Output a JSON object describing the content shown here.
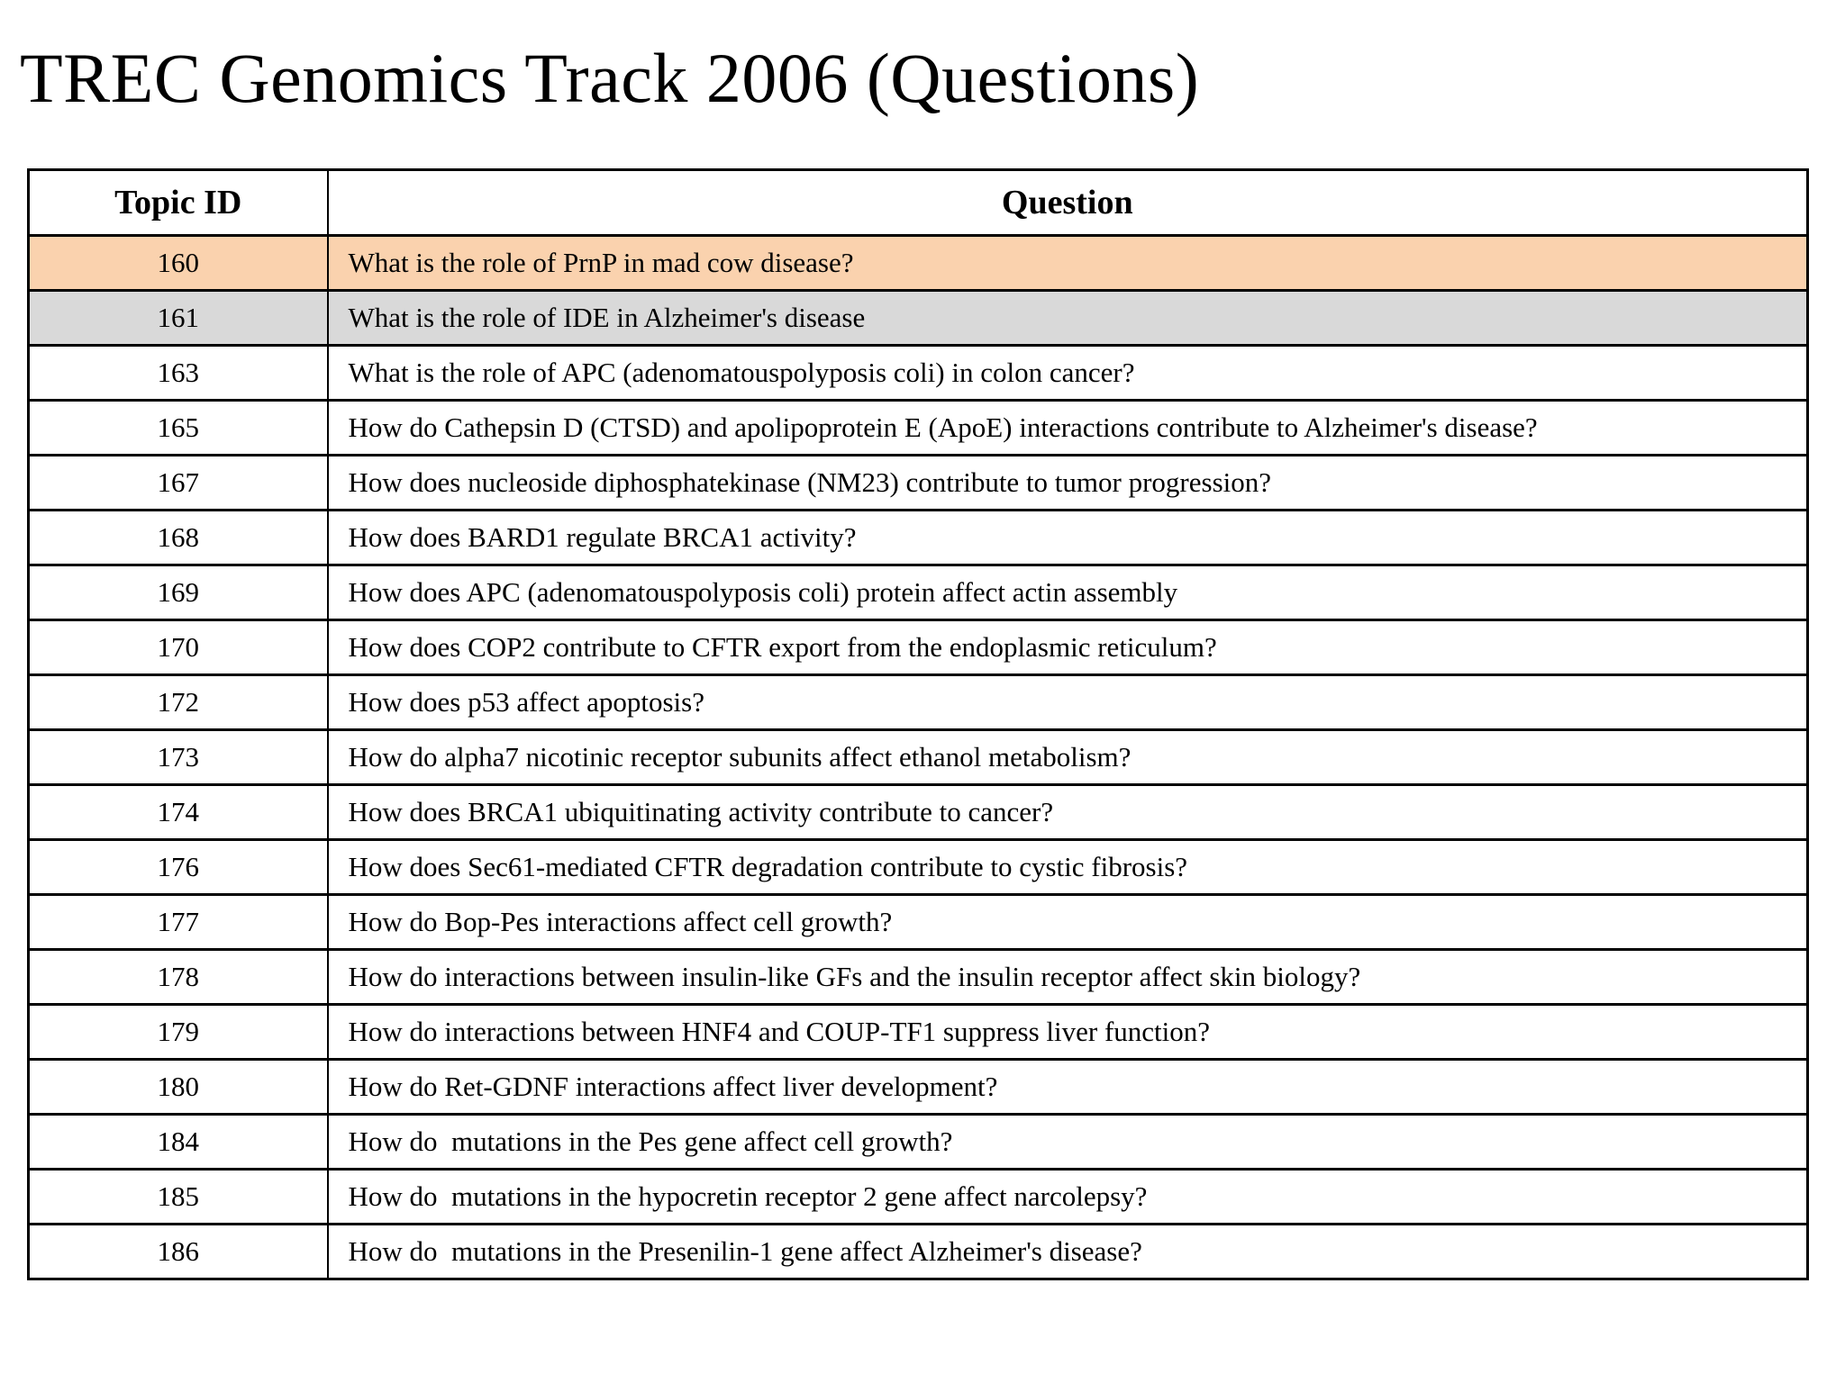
{
  "page": {
    "title": "TREC Genomics Track 2006 (Questions)",
    "background_color": "#ffffff",
    "text_color": "#000000"
  },
  "table": {
    "columns": [
      {
        "key": "topic_id",
        "label": "Topic ID"
      },
      {
        "key": "question",
        "label": "Question"
      }
    ],
    "border_color": "#000000",
    "highlight_colors": {
      "orange": "#FAD2AE",
      "gray": "#D9D9D9",
      "none": "#FFFFFF"
    },
    "rows": [
      {
        "topic_id": "160",
        "question": "What is the role of PrnP in mad cow disease?",
        "highlight": "orange"
      },
      {
        "topic_id": "161",
        "question": "What is the role of IDE in Alzheimer's disease",
        "highlight": "gray"
      },
      {
        "topic_id": "163",
        "question": "What is the role of APC (adenomatouspolyposis coli) in colon cancer?",
        "highlight": "none"
      },
      {
        "topic_id": "165",
        "question": "How do Cathepsin D (CTSD) and apolipoprotein E (ApoE) interactions contribute to Alzheimer's disease?",
        "highlight": "none"
      },
      {
        "topic_id": "167",
        "question": "How does nucleoside diphosphatekinase (NM23) contribute to tumor progression?",
        "highlight": "none"
      },
      {
        "topic_id": "168",
        "question": "How does BARD1 regulate BRCA1 activity?",
        "highlight": "none"
      },
      {
        "topic_id": "169",
        "question": "How does APC (adenomatouspolyposis coli) protein affect actin assembly",
        "highlight": "none"
      },
      {
        "topic_id": "170",
        "question": "How does COP2 contribute to CFTR export from the endoplasmic reticulum?",
        "highlight": "none"
      },
      {
        "topic_id": "172",
        "question": "How does p53 affect apoptosis?",
        "highlight": "none"
      },
      {
        "topic_id": "173",
        "question": "How do alpha7 nicotinic receptor subunits affect ethanol metabolism?",
        "highlight": "none"
      },
      {
        "topic_id": "174",
        "question": "How does BRCA1 ubiquitinating activity contribute to cancer?",
        "highlight": "none"
      },
      {
        "topic_id": "176",
        "question": "How does Sec61-mediated CFTR degradation contribute to cystic fibrosis?",
        "highlight": "none"
      },
      {
        "topic_id": "177",
        "question": "How do Bop-Pes interactions affect cell growth?",
        "highlight": "none"
      },
      {
        "topic_id": "178",
        "question": "How do interactions between insulin-like GFs and the insulin receptor affect skin biology?",
        "highlight": "none"
      },
      {
        "topic_id": "179",
        "question": "How do interactions between HNF4 and COUP-TF1 suppress liver function?",
        "highlight": "none"
      },
      {
        "topic_id": "180",
        "question": "How do Ret-GDNF interactions affect liver development?",
        "highlight": "none"
      },
      {
        "topic_id": "184",
        "question": "How do  mutations in the Pes gene affect cell growth?",
        "highlight": "none"
      },
      {
        "topic_id": "185",
        "question": "How do  mutations in the hypocretin receptor 2 gene affect narcolepsy?",
        "highlight": "none"
      },
      {
        "topic_id": "186",
        "question": "How do  mutations in the Presenilin-1 gene affect Alzheimer's disease?",
        "highlight": "none"
      }
    ]
  }
}
